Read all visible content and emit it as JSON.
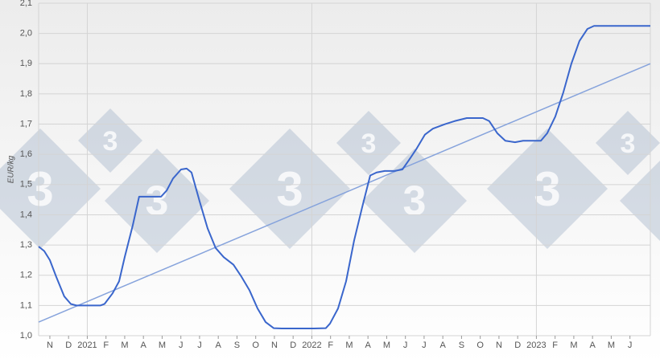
{
  "watermark_text": "3",
  "chart_data": {
    "type": "line",
    "y_label": "EUR/kg",
    "xlim": [
      -0.6,
      32.09
    ],
    "xticks": [
      {
        "value": 0,
        "label": "N"
      },
      {
        "value": 1,
        "label": "D"
      },
      {
        "value": 2,
        "label": "2021"
      },
      {
        "value": 3,
        "label": "F"
      },
      {
        "value": 4,
        "label": "M"
      },
      {
        "value": 5,
        "label": "A"
      },
      {
        "value": 6,
        "label": "M"
      },
      {
        "value": 7,
        "label": "J"
      },
      {
        "value": 8,
        "label": "J"
      },
      {
        "value": 9,
        "label": "A"
      },
      {
        "value": 10,
        "label": "S"
      },
      {
        "value": 11,
        "label": "O"
      },
      {
        "value": 12,
        "label": "N"
      },
      {
        "value": 13,
        "label": "D"
      },
      {
        "value": 14,
        "label": "2022"
      },
      {
        "value": 15,
        "label": "F"
      },
      {
        "value": 16,
        "label": "M"
      },
      {
        "value": 17,
        "label": "A"
      },
      {
        "value": 18,
        "label": "M"
      },
      {
        "value": 19,
        "label": "J"
      },
      {
        "value": 20,
        "label": "J"
      },
      {
        "value": 21,
        "label": "A"
      },
      {
        "value": 22,
        "label": "S"
      },
      {
        "value": 23,
        "label": "O"
      },
      {
        "value": 24,
        "label": "N"
      },
      {
        "value": 25,
        "label": "D"
      },
      {
        "value": 26,
        "label": "2023"
      },
      {
        "value": 27,
        "label": "F"
      },
      {
        "value": 28,
        "label": "M"
      },
      {
        "value": 29,
        "label": "A"
      },
      {
        "value": 30,
        "label": "M"
      },
      {
        "value": 31,
        "label": "J"
      }
    ],
    "ylim": [
      1.0,
      2.1
    ],
    "yticks": [
      {
        "value": 1.0,
        "label": "1,0"
      },
      {
        "value": 1.1,
        "label": "1,1"
      },
      {
        "value": 1.2,
        "label": "1,2"
      },
      {
        "value": 1.3,
        "label": "1,3"
      },
      {
        "value": 1.4,
        "label": "1,4"
      },
      {
        "value": 1.5,
        "label": "1,5"
      },
      {
        "value": 1.6,
        "label": "1,6"
      },
      {
        "value": 1.7,
        "label": "1,7"
      },
      {
        "value": 1.8,
        "label": "1,8"
      },
      {
        "value": 1.9,
        "label": "1,9"
      },
      {
        "value": 2.0,
        "label": "2,0"
      },
      {
        "value": 2.1,
        "label": "2,1"
      }
    ],
    "grid": true,
    "series": [
      {
        "color": "#3a66cc",
        "width": 2,
        "x": [
          -0.6,
          -0.3,
          0,
          0.34,
          0.77,
          1.12,
          1.42,
          2.06,
          2.71,
          2.92,
          3.35,
          3.7,
          4.0,
          4.43,
          4.77,
          5.29,
          5.94,
          6.24,
          6.58,
          7.01,
          7.31,
          7.57,
          8.0,
          8.43,
          8.86,
          9.29,
          9.81,
          10.24,
          10.67,
          11.1,
          11.53,
          11.96,
          12.39,
          13.25,
          14.11,
          14.75,
          14.97,
          15.4,
          15.83,
          16.26,
          16.69,
          17.12,
          17.46,
          17.89,
          18.41,
          18.84,
          19.18,
          19.61,
          20.04,
          20.47,
          21.12,
          21.63,
          22.28,
          23.14,
          23.48,
          23.91,
          24.34,
          24.86,
          25.29,
          26.24,
          26.58,
          27.01,
          27.44,
          27.87,
          28.3,
          28.73,
          29.08,
          30.02,
          32.09
        ],
        "values": [
          1.295,
          1.28,
          1.25,
          1.195,
          1.13,
          1.105,
          1.1,
          1.1,
          1.1,
          1.105,
          1.14,
          1.18,
          1.26,
          1.365,
          1.46,
          1.46,
          1.46,
          1.48,
          1.52,
          1.55,
          1.553,
          1.54,
          1.445,
          1.355,
          1.29,
          1.26,
          1.235,
          1.195,
          1.15,
          1.09,
          1.045,
          1.025,
          1.024,
          1.024,
          1.024,
          1.025,
          1.04,
          1.09,
          1.18,
          1.315,
          1.425,
          1.53,
          1.54,
          1.545,
          1.545,
          1.55,
          1.58,
          1.62,
          1.665,
          1.685,
          1.7,
          1.71,
          1.72,
          1.72,
          1.71,
          1.67,
          1.645,
          1.64,
          1.645,
          1.645,
          1.67,
          1.725,
          1.805,
          1.9,
          1.975,
          2.015,
          2.025,
          2.025,
          2.025
        ]
      },
      {
        "color": "#86a3dc",
        "width": 1.5,
        "x": [
          -0.6,
          32.09
        ],
        "values": [
          1.045,
          1.9
        ]
      }
    ]
  }
}
